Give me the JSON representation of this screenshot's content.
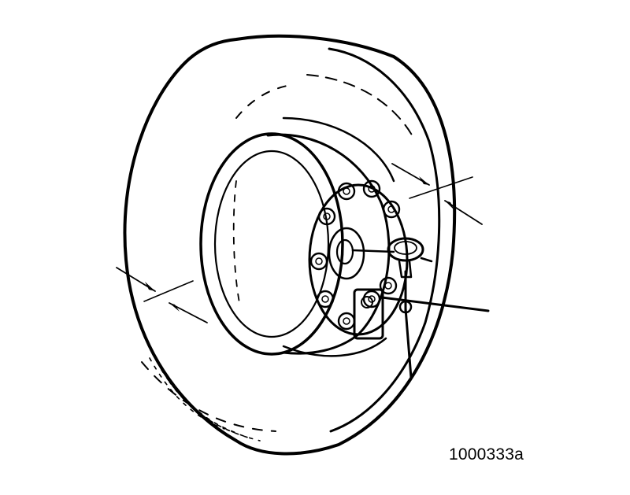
{
  "figure": {
    "reference_code": "1000333a"
  },
  "colors": {
    "ink": "#000000",
    "paper": "#ffffff"
  }
}
